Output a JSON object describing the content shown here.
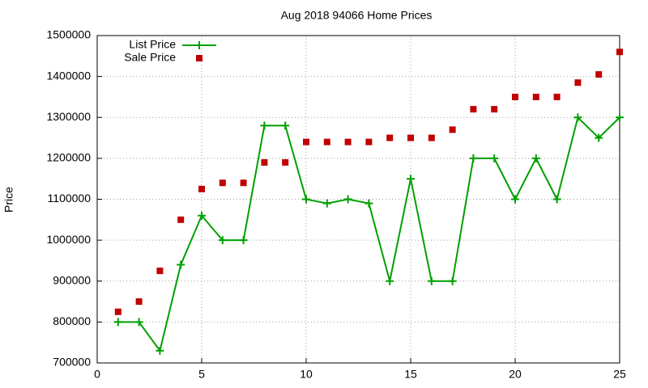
{
  "chart_data": {
    "type": "line",
    "title": "Aug 2018 94066 Home Prices",
    "y_label": "Price",
    "x": [
      1,
      2,
      3,
      4,
      5,
      6,
      7,
      8,
      9,
      10,
      11,
      12,
      13,
      14,
      15,
      16,
      17,
      18,
      19,
      20,
      21,
      22,
      23,
      24,
      25
    ],
    "series": [
      {
        "name": "List Price",
        "color": "#00a000",
        "mode": "linespoints",
        "values": [
          800000,
          800000,
          730000,
          940000,
          1060000,
          1000000,
          1000000,
          1280000,
          1280000,
          1100000,
          1090000,
          1100000,
          1090000,
          900000,
          1150000,
          900000,
          900000,
          1200000,
          1200000,
          1100000,
          1200000,
          1100000,
          1300000,
          1250000,
          1300000
        ]
      },
      {
        "name": "Sale Price",
        "color": "#c00000",
        "mode": "points",
        "values": [
          825000,
          850000,
          925000,
          1050000,
          1125000,
          1140000,
          1140000,
          1190000,
          1190000,
          1240000,
          1240000,
          1240000,
          1240000,
          1250000,
          1250000,
          1250000,
          1270000,
          1320000,
          1320000,
          1350000,
          1350000,
          1350000,
          1385000,
          1405000,
          1460000
        ]
      }
    ],
    "xlim": [
      0,
      25
    ],
    "xticks": [
      0,
      5,
      10,
      15,
      20,
      25
    ],
    "ylim": [
      700000,
      1500000
    ],
    "yticks": [
      700000,
      800000,
      900000,
      1000000,
      1100000,
      1200000,
      1300000,
      1400000,
      1500000
    ],
    "grid": true,
    "legend": "top-left"
  }
}
